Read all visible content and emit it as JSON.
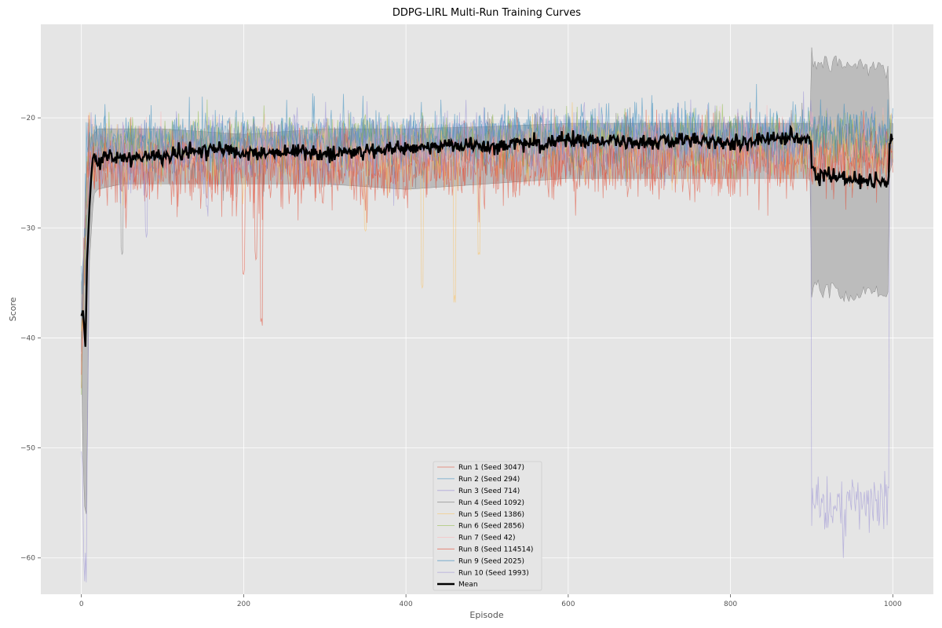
{
  "chart_data": {
    "type": "line",
    "title": "DDPG-LIRL Multi-Run Training Curves",
    "xlabel": "Episode",
    "ylabel": "Score",
    "xlim": [
      -50,
      1050
    ],
    "ylim": [
      -63.3,
      -11.5
    ],
    "xticks": [
      0,
      200,
      400,
      600,
      800,
      1000
    ],
    "yticks": [
      -60,
      -50,
      -40,
      -30,
      -20
    ],
    "grid": true,
    "legend_position": "lower center",
    "band": {
      "description": "mean ± std shaded region",
      "x": [
        0,
        3,
        6,
        10,
        15,
        20,
        50,
        100,
        200,
        300,
        400,
        500,
        600,
        700,
        800,
        899,
        900,
        950,
        995,
        996,
        1000
      ],
      "upper": [
        -35,
        -33,
        -29,
        -22,
        -21.5,
        -21,
        -21,
        -21,
        -21.5,
        -21,
        -21,
        -20.8,
        -20.5,
        -20.5,
        -20.5,
        -20.5,
        -15,
        -15.2,
        -15.5,
        -20.5,
        -20.5
      ],
      "lower": [
        -42,
        -55,
        -56,
        -33,
        -27,
        -26.5,
        -26,
        -26,
        -26,
        -26,
        -26.5,
        -26,
        -25.5,
        -25.5,
        -25.5,
        -25.5,
        -35.5,
        -36,
        -36,
        -25,
        -24
      ]
    },
    "series": [
      {
        "name": "Run 1 (Seed 3047)",
        "color": "#e24a33",
        "base": [
          [
            0,
            -42
          ],
          [
            8,
            -24
          ],
          [
            100,
            -25
          ],
          [
            300,
            -25
          ],
          [
            600,
            -24.5
          ],
          [
            899,
            -24
          ],
          [
            1000,
            -24
          ]
        ],
        "noise": 1.6,
        "dips": [
          [
            200,
            -34.5
          ],
          [
            222,
            -39.2
          ],
          [
            215,
            -33
          ]
        ]
      },
      {
        "name": "Run 2 (Seed 294)",
        "color": "#348abd",
        "base": [
          [
            0,
            -36
          ],
          [
            8,
            -22.5
          ],
          [
            300,
            -22
          ],
          [
            600,
            -21.5
          ],
          [
            1000,
            -21.5
          ]
        ],
        "noise": 1.2,
        "dips": []
      },
      {
        "name": "Run 3 (Seed 714)",
        "color": "#988ed5",
        "base": [
          [
            0,
            -38
          ],
          [
            8,
            -22.5
          ],
          [
            300,
            -22
          ],
          [
            600,
            -21.5
          ],
          [
            1000,
            -21.5
          ]
        ],
        "noise": 1.2,
        "dips": []
      },
      {
        "name": "Run 4 (Seed 1092)",
        "color": "#777777",
        "base": [
          [
            0,
            -40
          ],
          [
            9,
            -23.5
          ],
          [
            300,
            -23
          ],
          [
            600,
            -22.5
          ],
          [
            1000,
            -22.5
          ]
        ],
        "noise": 1.3,
        "dips": [
          [
            50,
            -32.5
          ]
        ]
      },
      {
        "name": "Run 5 (Seed 1386)",
        "color": "#fbc15e",
        "base": [
          [
            0,
            -42
          ],
          [
            8,
            -23.5
          ],
          [
            300,
            -23.5
          ],
          [
            600,
            -23
          ],
          [
            1000,
            -23
          ]
        ],
        "noise": 1.3,
        "dips": [
          [
            350,
            -31
          ],
          [
            420,
            -35.5
          ],
          [
            460,
            -37
          ],
          [
            490,
            -33
          ]
        ]
      },
      {
        "name": "Run 6 (Seed 2856)",
        "color": "#8eba42",
        "base": [
          [
            0,
            -44
          ],
          [
            8,
            -22.5
          ],
          [
            300,
            -22
          ],
          [
            600,
            -22
          ],
          [
            1000,
            -22
          ]
        ],
        "noise": 1.2,
        "dips": []
      },
      {
        "name": "Run 7 (Seed 42)",
        "color": "#ffb5b8",
        "base": [
          [
            0,
            -40
          ],
          [
            8,
            -23
          ],
          [
            300,
            -23
          ],
          [
            600,
            -22.5
          ],
          [
            1000,
            -22.5
          ]
        ],
        "noise": 1.3,
        "dips": []
      },
      {
        "name": "Run 8 (Seed 114514)",
        "color": "#e24a33",
        "base": [
          [
            0,
            -43
          ],
          [
            8,
            -24.5
          ],
          [
            300,
            -24
          ],
          [
            600,
            -23.5
          ],
          [
            1000,
            -23.5
          ]
        ],
        "noise": 1.5,
        "dips": []
      },
      {
        "name": "Run 9 (Seed 2025)",
        "color": "#348abd",
        "base": [
          [
            0,
            -40
          ],
          [
            8,
            -22
          ],
          [
            300,
            -21.8
          ],
          [
            600,
            -21.5
          ],
          [
            1000,
            -21.5
          ]
        ],
        "noise": 1.2,
        "dips": []
      },
      {
        "name": "Run 10 (Seed 1993)",
        "color": "#988ed5",
        "base": [
          [
            0,
            -50
          ],
          [
            3,
            -60.5
          ],
          [
            6,
            -61
          ],
          [
            10,
            -24
          ],
          [
            100,
            -23.5
          ],
          [
            300,
            -23
          ],
          [
            600,
            -22.5
          ],
          [
            899,
            -22.5
          ],
          [
            900,
            -55
          ],
          [
            995,
            -55
          ],
          [
            996,
            -23
          ],
          [
            1000,
            -23
          ]
        ],
        "noise": 1.3,
        "dips": [
          [
            80,
            -31
          ],
          [
            155,
            -29
          ]
        ]
      }
    ],
    "mean": {
      "name": "Mean",
      "color": "#000000",
      "x": [
        0,
        2,
        5,
        7,
        10,
        12,
        15,
        20,
        30,
        50,
        100,
        150,
        180,
        200,
        250,
        300,
        350,
        400,
        450,
        500,
        550,
        600,
        650,
        700,
        750,
        800,
        850,
        880,
        899,
        900,
        905,
        950,
        995,
        996,
        1000
      ],
      "y": [
        -38,
        -37.5,
        -40.8,
        -33,
        -28,
        -25.5,
        -23.5,
        -24,
        -23.5,
        -23.5,
        -23.5,
        -23,
        -22.8,
        -23.5,
        -23,
        -23.2,
        -23,
        -22.8,
        -22.5,
        -22.6,
        -22.3,
        -22,
        -22.2,
        -22.3,
        -22,
        -22.3,
        -22,
        -21.8,
        -22,
        -24.5,
        -25.2,
        -25.5,
        -25.8,
        -21.8,
        -22
      ]
    }
  }
}
